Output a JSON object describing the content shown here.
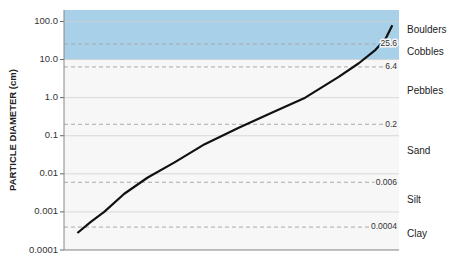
{
  "chart_data": {
    "type": "line",
    "y_label": "PARTICLE DIAMETER  (cm)",
    "log": "y",
    "grid": true,
    "tick_labels": "y",
    "xlim": [
      0,
      1
    ],
    "ylim": [
      0.0001,
      200.0
    ],
    "yticks": [
      0.0001,
      0.001,
      0.01,
      0.1,
      {
        "value": 1.0,
        "label": "1.0"
      },
      {
        "value": 10.0,
        "label": "10.0"
      },
      {
        "value": 100.0,
        "label": "100.0"
      }
    ],
    "x": [
      0.04,
      0.08,
      0.12,
      0.18,
      0.25,
      0.33,
      0.42,
      0.52,
      0.62,
      0.72,
      0.82,
      0.88,
      0.93,
      0.96,
      0.98
    ],
    "series": [
      {
        "color": "#111111",
        "values": [
          0.00028,
          0.00055,
          0.001,
          0.003,
          0.008,
          0.02,
          0.06,
          0.16,
          0.4,
          1.0,
          3.5,
          8.0,
          18.0,
          35.0,
          80.0
        ]
      }
    ],
    "bands": [
      {
        "from": 10.0,
        "to": 200.0,
        "color": "#a8d0e8"
      }
    ],
    "reference_lines": [
      {
        "value": 25.6,
        "label": "25.6",
        "color": "#aaaaaa"
      },
      {
        "value": 6.4,
        "label": "6.4",
        "color": "#aaaaaa"
      },
      {
        "value": 0.2,
        "label": "0.2",
        "color": "#aaaaaa"
      },
      {
        "value": 0.006,
        "label": "0.006",
        "color": "#aaaaaa"
      },
      {
        "value": 0.0004,
        "label": "0.0004",
        "color": "#aaaaaa"
      }
    ],
    "annotations": [
      {
        "text": "Boulders",
        "y": 60.0
      },
      {
        "text": "Cobbles",
        "y": 15.0
      },
      {
        "text": "Pebbles",
        "y": 1.5
      },
      {
        "text": "Sand",
        "y": 0.04
      },
      {
        "text": "Silt",
        "y": 0.002
      },
      {
        "text": "Clay",
        "y": 0.00025
      }
    ]
  }
}
